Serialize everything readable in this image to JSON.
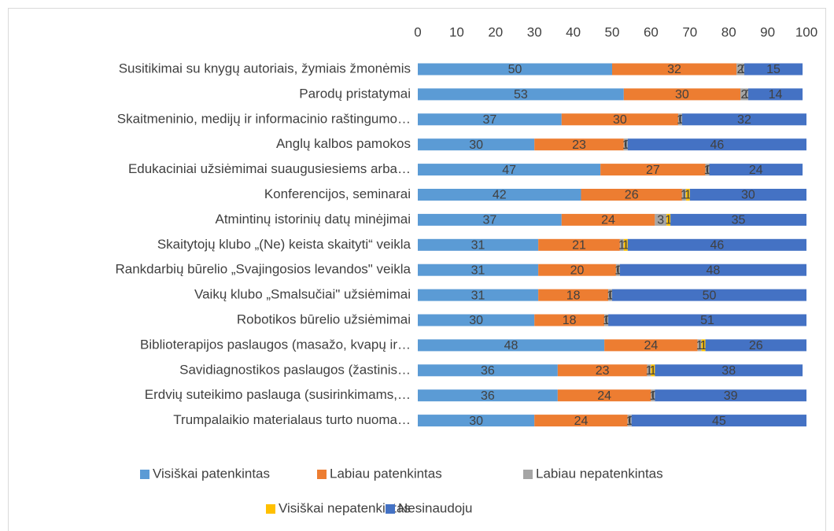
{
  "chart_data": {
    "type": "stacked_bar_horizontal",
    "categories": [
      "Susitikimai su knygų  autoriais, žymiais žmonėmis",
      "Parodų pristatymai",
      "Skaitmeninio, medijų ir informacinio raštingumo…",
      "Anglų kalbos pamokos",
      "Edukaciniai užsiėmimai suaugusiesiems arba…",
      "Konferencijos, seminarai",
      "Atmintinų istorinių datų minėjimai",
      "Skaitytojų klubo „(Ne) keista skaityti“ veikla",
      "Rankdarbių būrelio „Svajingosios levandos\" veikla",
      "Vaikų klubo „Smalsučiai\" užsiėmimai",
      "Robotikos būrelio užsiėmimai",
      "Biblioterapijos paslaugos (masažo, kvapų ir…",
      "Savidiagnostikos paslaugos (žastinis…",
      "Erdvių suteikimo paslauga (susirinkimams,…",
      "Trumpalaikio materialaus turto nuoma…"
    ],
    "series": [
      {
        "name": "Visiškai patenkintas",
        "color": "#5b9bd5",
        "values": [
          50,
          53,
          37,
          30,
          47,
          42,
          37,
          31,
          31,
          31,
          30,
          48,
          36,
          36,
          30
        ]
      },
      {
        "name": "Labiau patenkintas",
        "color": "#ed7d31",
        "values": [
          32,
          30,
          30,
          23,
          27,
          26,
          24,
          21,
          20,
          18,
          18,
          24,
          23,
          24,
          24
        ]
      },
      {
        "name": "Labiau nepatenkintas",
        "color": "#a5a5a5",
        "values": [
          2,
          2,
          1,
          1,
          1,
          1,
          3,
          1,
          1,
          1,
          1,
          1,
          1,
          1,
          1
        ]
      },
      {
        "name": "Visiškai nepatenkintas",
        "color": "#ffc000",
        "values": [
          0,
          0,
          0,
          0,
          0,
          1,
          1,
          1,
          0,
          0,
          0,
          1,
          1,
          0,
          0
        ]
      },
      {
        "name": "Nesinaudoju",
        "color": "#4472c4",
        "values": [
          15,
          14,
          32,
          46,
          24,
          30,
          35,
          46,
          48,
          50,
          51,
          26,
          38,
          39,
          45
        ]
      }
    ],
    "xlim": [
      0,
      100
    ],
    "xticks": [
      0,
      10,
      20,
      30,
      40,
      50,
      60,
      70,
      80,
      90,
      100
    ],
    "legend": "bottom"
  }
}
